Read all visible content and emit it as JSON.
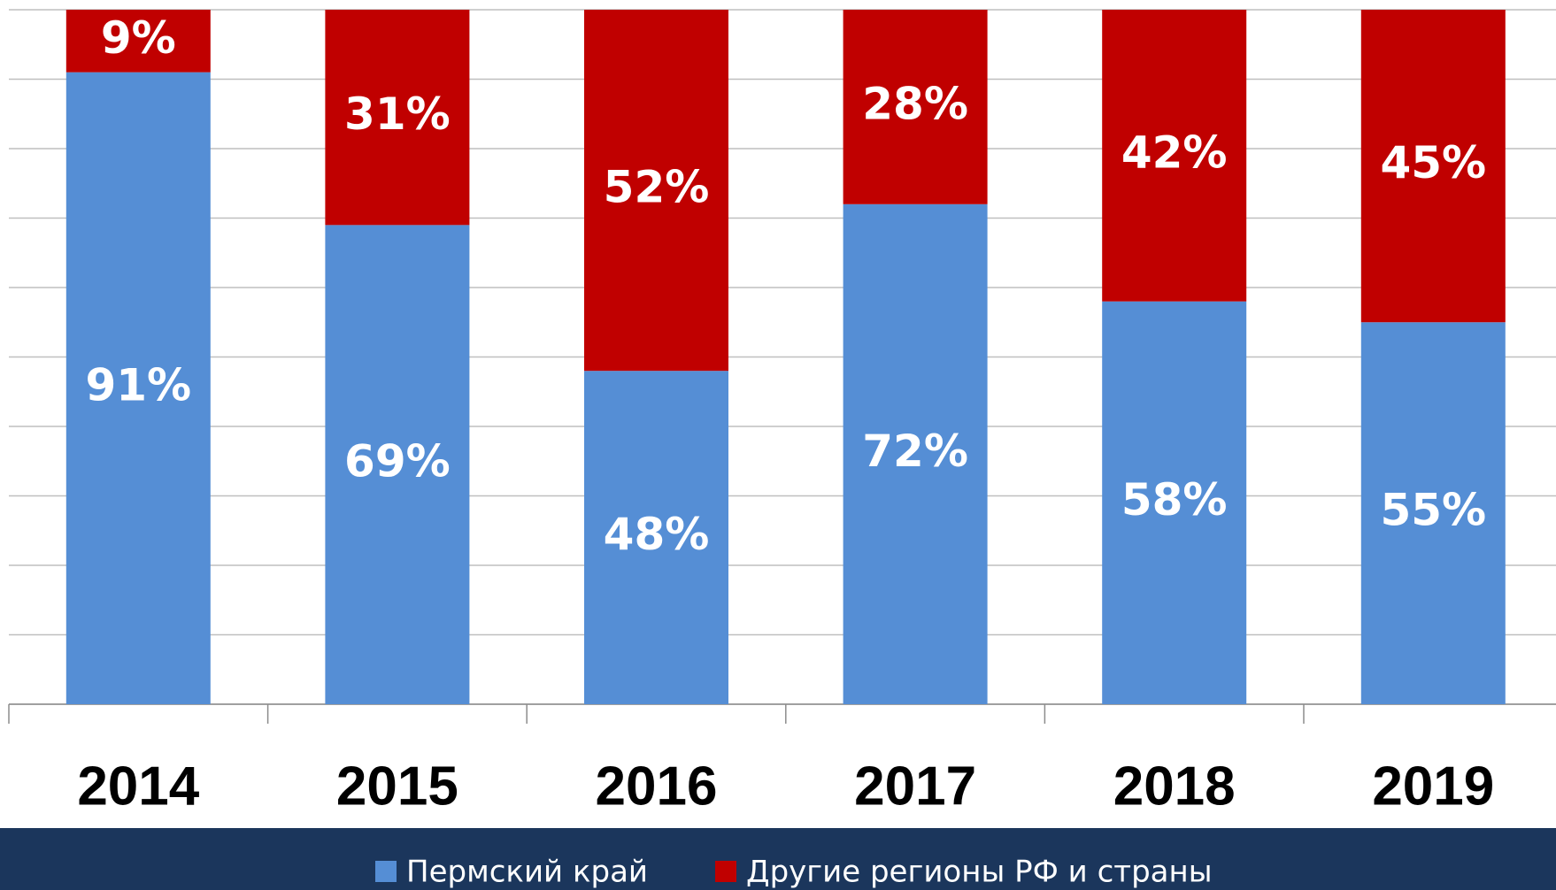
{
  "chart_data": {
    "type": "bar",
    "stacked": true,
    "categories": [
      "2014",
      "2015",
      "2016",
      "2017",
      "2018",
      "2019"
    ],
    "series": [
      {
        "name": "Пермский край",
        "color": "#558ed5",
        "values": [
          91,
          69,
          48,
          72,
          58,
          55
        ],
        "value_labels": [
          "91%",
          "69%",
          "48%",
          "72%",
          "58%",
          "55%"
        ]
      },
      {
        "name": "Другие регионы РФ и страны",
        "color": "#c00000",
        "values": [
          9,
          31,
          52,
          28,
          42,
          45
        ],
        "value_labels": [
          "9%",
          "31%",
          "52%",
          "28%",
          "42%",
          "45%"
        ]
      }
    ],
    "ylim": [
      0,
      100
    ],
    "yticks": [
      0,
      10,
      20,
      30,
      40,
      50,
      60,
      70,
      80,
      90,
      100
    ],
    "grid": true,
    "legend": "bottom"
  }
}
